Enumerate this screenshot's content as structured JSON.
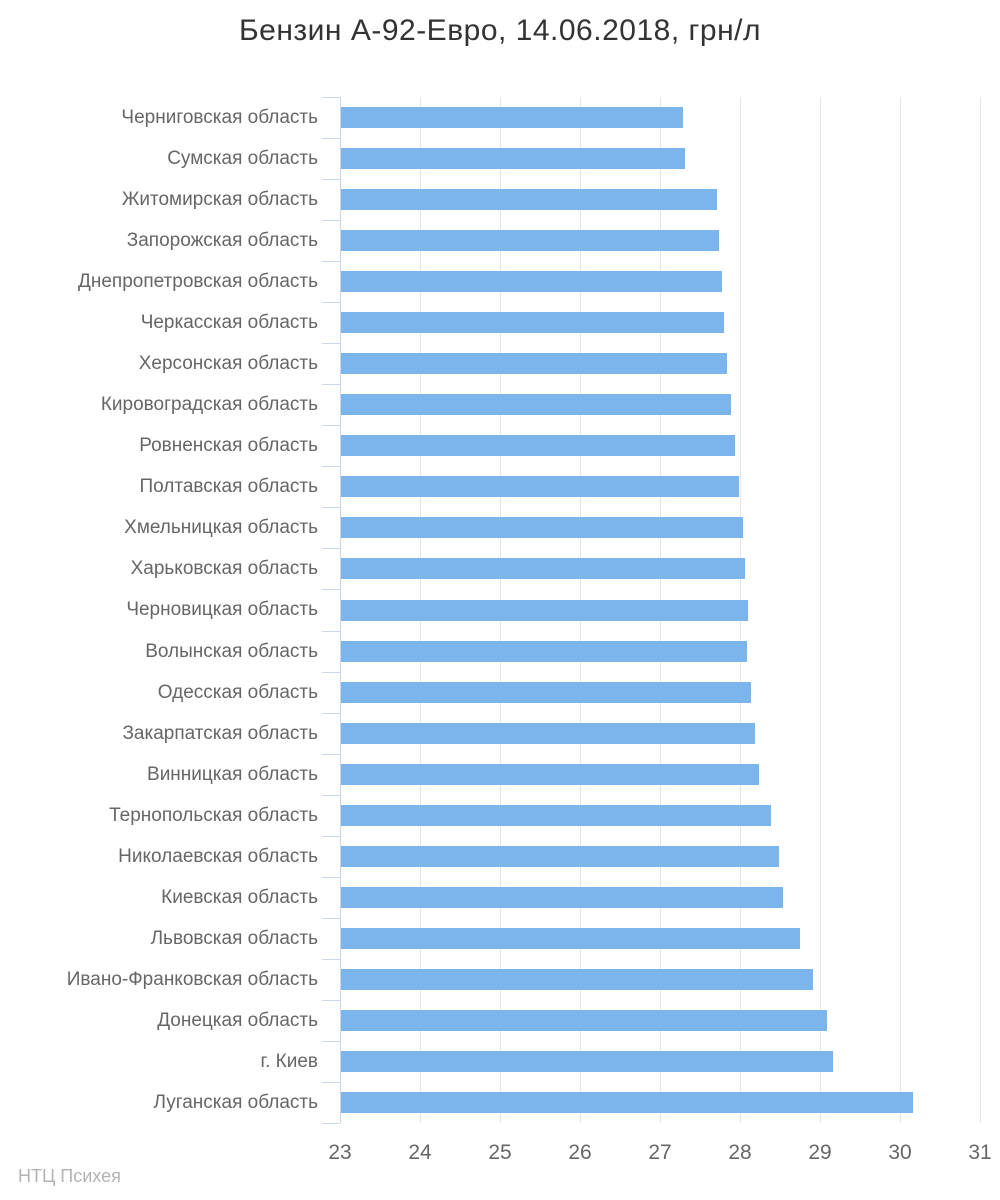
{
  "watermark": {
    "text": "НТЦ Психея"
  },
  "chart_data": {
    "type": "bar",
    "orientation": "horizontal",
    "title": "Бензин А-92-Евро, 14.06.2018, грн/л",
    "xlabel": "",
    "ylabel": "",
    "unit": "грн/л",
    "date": "14.06.2018",
    "grid": true,
    "legend": false,
    "xlim": [
      23,
      31
    ],
    "xticks": [
      23,
      24,
      25,
      26,
      27,
      28,
      29,
      30,
      31
    ],
    "categories": [
      "Черниговская область",
      "Сумская область",
      "Житомирская область",
      "Запорожская область",
      "Днепропетровская область",
      "Черкасская область",
      "Херсонская область",
      "Кировоградская область",
      "Ровненская область",
      "Полтавская область",
      "Хмельницкая область",
      "Харьковская область",
      "Черновицкая область",
      "Волынская область",
      "Одесская область",
      "Закарпатская область",
      "Винницкая область",
      "Тернопольская область",
      "Николаевская область",
      "Киевская область",
      "Львовская область",
      "Ивано-Франковская область",
      "Донецкая область",
      "г. Киев",
      "Луганская область"
    ],
    "values": [
      27.27,
      27.3,
      27.7,
      27.73,
      27.76,
      27.79,
      27.83,
      27.88,
      27.93,
      27.98,
      28.02,
      28.05,
      28.09,
      28.08,
      28.13,
      28.18,
      28.23,
      28.38,
      28.48,
      28.53,
      28.74,
      28.9,
      29.08,
      29.15,
      30.15
    ],
    "colors": {
      "bar": "#7cb5ec",
      "axis": "#ccd6eb",
      "grid": "#e6e6e6",
      "label": "#666666",
      "tick_label": "#666666",
      "title": "#333333",
      "watermark": "#b3b3b3",
      "background": "#ffffff"
    }
  }
}
